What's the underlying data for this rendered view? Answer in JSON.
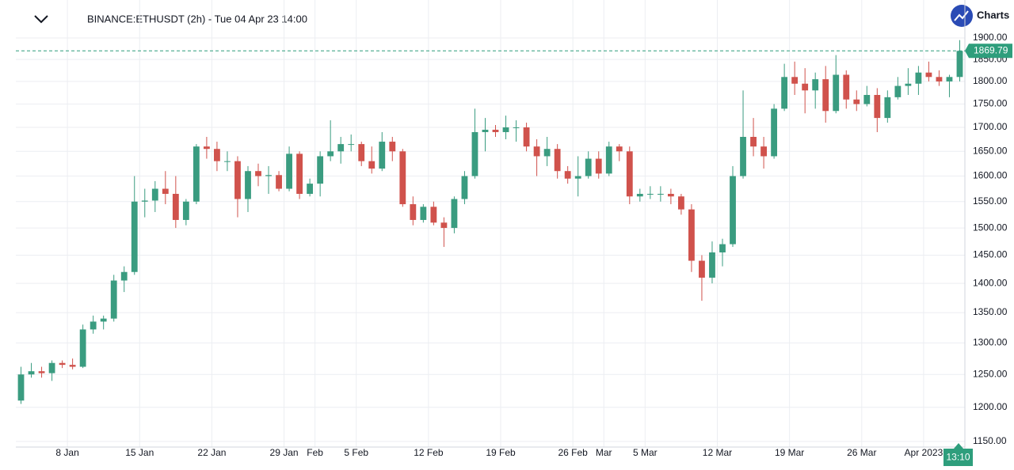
{
  "chart_data": {
    "type": "candlestick",
    "title": "BINANCE:ETHUSDT (2h) - Tue 04 Apr 23 14:00",
    "brand": "Charts",
    "countdown": "13:10",
    "log_scale": true,
    "grid": true,
    "up_color": "#3a9c80",
    "down_color": "#d0524c",
    "price_line_color": "#2e9e7c",
    "xlim": [
      "2023-01-03",
      "2023-04-05"
    ],
    "xticks": [
      {
        "value": "2023-01-08",
        "label": "8 Jan"
      },
      {
        "value": "2023-01-15",
        "label": "15 Jan"
      },
      {
        "value": "2023-01-22",
        "label": "22 Jan"
      },
      {
        "value": "2023-01-29",
        "label": "29 Jan"
      },
      {
        "value": "2023-02-01",
        "label": "Feb"
      },
      {
        "value": "2023-02-05",
        "label": "5 Feb"
      },
      {
        "value": "2023-02-12",
        "label": "12 Feb"
      },
      {
        "value": "2023-02-19",
        "label": "19 Feb"
      },
      {
        "value": "2023-02-26",
        "label": "26 Feb"
      },
      {
        "value": "2023-03-01",
        "label": "Mar"
      },
      {
        "value": "2023-03-05",
        "label": "5 Mar"
      },
      {
        "value": "2023-03-12",
        "label": "12 Mar"
      },
      {
        "value": "2023-03-19",
        "label": "19 Mar"
      },
      {
        "value": "2023-03-26",
        "label": "26 Mar"
      },
      {
        "value": "2023-04-01",
        "label": "Apr 2023"
      }
    ],
    "ylim": [
      1142,
      1992
    ],
    "yticks": [
      {
        "value": 1150,
        "label": "1150.00"
      },
      {
        "value": 1200,
        "label": "1200.00"
      },
      {
        "value": 1250,
        "label": "1250.00"
      },
      {
        "value": 1300,
        "label": "1300.00"
      },
      {
        "value": 1350,
        "label": "1350.00"
      },
      {
        "value": 1400,
        "label": "1400.00"
      },
      {
        "value": 1450,
        "label": "1450.00"
      },
      {
        "value": 1500,
        "label": "1500.00"
      },
      {
        "value": 1550,
        "label": "1550.00"
      },
      {
        "value": 1600,
        "label": "1600.00"
      },
      {
        "value": 1650,
        "label": "1650.00"
      },
      {
        "value": 1700,
        "label": "1700.00"
      },
      {
        "value": 1750,
        "label": "1750.00"
      },
      {
        "value": 1800,
        "label": "1800.00"
      },
      {
        "value": 1850,
        "label": "1850.00"
      },
      {
        "value": 1900,
        "label": "1900.00"
      }
    ],
    "x": [
      "2023-01-03",
      "2023-01-04",
      "2023-01-05",
      "2023-01-06",
      "2023-01-07",
      "2023-01-08",
      "2023-01-09",
      "2023-01-10",
      "2023-01-11",
      "2023-01-12",
      "2023-01-13",
      "2023-01-14",
      "2023-01-15",
      "2023-01-16",
      "2023-01-17",
      "2023-01-18",
      "2023-01-19",
      "2023-01-20",
      "2023-01-21",
      "2023-01-22",
      "2023-01-23",
      "2023-01-24",
      "2023-01-25",
      "2023-01-26",
      "2023-01-27",
      "2023-01-28",
      "2023-01-29",
      "2023-01-30",
      "2023-01-31",
      "2023-02-01",
      "2023-02-02",
      "2023-02-03",
      "2023-02-04",
      "2023-02-05",
      "2023-02-06",
      "2023-02-07",
      "2023-02-08",
      "2023-02-09",
      "2023-02-10",
      "2023-02-11",
      "2023-02-12",
      "2023-02-13",
      "2023-02-14",
      "2023-02-15",
      "2023-02-16",
      "2023-02-17",
      "2023-02-18",
      "2023-02-19",
      "2023-02-20",
      "2023-02-21",
      "2023-02-22",
      "2023-02-23",
      "2023-02-24",
      "2023-02-25",
      "2023-02-26",
      "2023-02-27",
      "2023-02-28",
      "2023-03-01",
      "2023-03-02",
      "2023-03-03",
      "2023-03-04",
      "2023-03-05",
      "2023-03-06",
      "2023-03-07",
      "2023-03-08",
      "2023-03-09",
      "2023-03-10",
      "2023-03-11",
      "2023-03-12",
      "2023-03-13",
      "2023-03-14",
      "2023-03-15",
      "2023-03-16",
      "2023-03-17",
      "2023-03-18",
      "2023-03-19",
      "2023-03-20",
      "2023-03-21",
      "2023-03-22",
      "2023-03-23",
      "2023-03-24",
      "2023-03-25",
      "2023-03-26",
      "2023-03-27",
      "2023-03-28",
      "2023-03-29",
      "2023-03-30",
      "2023-03-31",
      "2023-04-01",
      "2023-04-02",
      "2023-04-03",
      "2023-04-04"
    ],
    "open": [
      1210,
      1250,
      1255,
      1252,
      1268,
      1265,
      1262,
      1322,
      1335,
      1340,
      1405,
      1420,
      1550,
      1552,
      1575,
      1565,
      1515,
      1550,
      1660,
      1655,
      1630,
      1630,
      1555,
      1610,
      1600,
      1602,
      1575,
      1645,
      1565,
      1585,
      1640,
      1650,
      1665,
      1665,
      1630,
      1615,
      1670,
      1650,
      1545,
      1515,
      1540,
      1510,
      1500,
      1555,
      1600,
      1690,
      1695,
      1690,
      1700,
      1700,
      1660,
      1640,
      1655,
      1610,
      1595,
      1600,
      1635,
      1605,
      1660,
      1650,
      1560,
      1565,
      1565,
      1565,
      1560,
      1535,
      1440,
      1410,
      1455,
      1470,
      1600,
      1680,
      1660,
      1640,
      1740,
      1810,
      1795,
      1780,
      1805,
      1735,
      1815,
      1760,
      1750,
      1770,
      1720,
      1765,
      1790,
      1795,
      1820,
      1810,
      1800,
      1810
    ],
    "high": [
      1262,
      1268,
      1262,
      1272,
      1272,
      1275,
      1330,
      1345,
      1345,
      1415,
      1430,
      1600,
      1575,
      1590,
      1610,
      1600,
      1555,
      1665,
      1680,
      1670,
      1650,
      1640,
      1620,
      1625,
      1620,
      1610,
      1660,
      1650,
      1595,
      1650,
      1715,
      1680,
      1685,
      1670,
      1660,
      1690,
      1680,
      1655,
      1560,
      1545,
      1550,
      1520,
      1560,
      1610,
      1740,
      1720,
      1705,
      1725,
      1715,
      1710,
      1675,
      1680,
      1665,
      1620,
      1640,
      1650,
      1650,
      1670,
      1665,
      1660,
      1575,
      1580,
      1580,
      1575,
      1565,
      1545,
      1450,
      1475,
      1480,
      1620,
      1780,
      1720,
      1680,
      1750,
      1840,
      1845,
      1830,
      1820,
      1835,
      1860,
      1825,
      1780,
      1790,
      1785,
      1780,
      1810,
      1830,
      1835,
      1845,
      1825,
      1815,
      1895
    ],
    "low": [
      1205,
      1245,
      1245,
      1240,
      1260,
      1258,
      1260,
      1315,
      1322,
      1335,
      1385,
      1415,
      1520,
      1530,
      1545,
      1500,
      1505,
      1545,
      1635,
      1610,
      1610,
      1520,
      1530,
      1580,
      1565,
      1570,
      1570,
      1555,
      1560,
      1560,
      1630,
      1625,
      1650,
      1620,
      1605,
      1610,
      1630,
      1540,
      1505,
      1510,
      1505,
      1465,
      1490,
      1545,
      1595,
      1650,
      1680,
      1675,
      1670,
      1650,
      1600,
      1620,
      1595,
      1585,
      1560,
      1595,
      1595,
      1600,
      1630,
      1545,
      1550,
      1555,
      1550,
      1545,
      1525,
      1420,
      1370,
      1400,
      1430,
      1465,
      1595,
      1640,
      1615,
      1635,
      1735,
      1770,
      1730,
      1740,
      1710,
      1730,
      1740,
      1735,
      1745,
      1690,
      1710,
      1760,
      1770,
      1770,
      1800,
      1790,
      1765,
      1800
    ],
    "close": [
      1250,
      1255,
      1252,
      1268,
      1265,
      1262,
      1322,
      1335,
      1340,
      1405,
      1420,
      1550,
      1552,
      1575,
      1565,
      1515,
      1550,
      1660,
      1655,
      1630,
      1630,
      1555,
      1610,
      1600,
      1602,
      1575,
      1645,
      1565,
      1585,
      1640,
      1650,
      1665,
      1665,
      1630,
      1615,
      1670,
      1650,
      1545,
      1515,
      1540,
      1510,
      1500,
      1555,
      1600,
      1690,
      1695,
      1690,
      1700,
      1700,
      1660,
      1640,
      1655,
      1610,
      1595,
      1600,
      1635,
      1605,
      1660,
      1650,
      1560,
      1565,
      1565,
      1565,
      1560,
      1535,
      1440,
      1410,
      1455,
      1470,
      1600,
      1680,
      1660,
      1640,
      1740,
      1810,
      1795,
      1780,
      1805,
      1735,
      1815,
      1760,
      1750,
      1770,
      1720,
      1765,
      1790,
      1795,
      1820,
      1810,
      1800,
      1810,
      1869.79
    ]
  }
}
